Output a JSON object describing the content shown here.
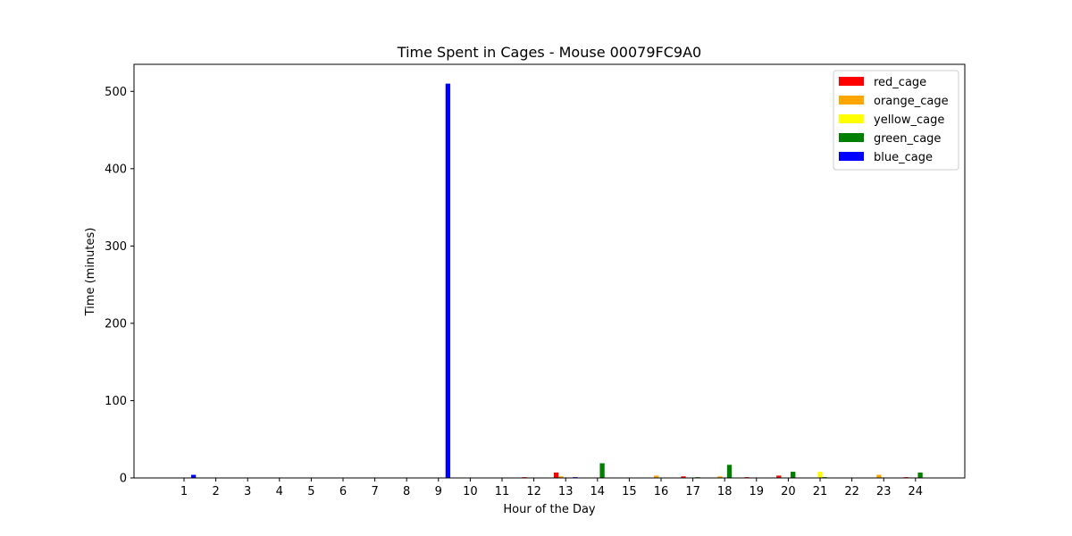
{
  "chart_data": {
    "type": "bar",
    "title": "Time Spent in Cages - Mouse 00079FC9A0",
    "xlabel": "Hour of the Day",
    "ylabel": "Time (minutes)",
    "categories": [
      "1",
      "2",
      "3",
      "4",
      "5",
      "6",
      "7",
      "8",
      "9",
      "10",
      "11",
      "12",
      "13",
      "14",
      "15",
      "16",
      "17",
      "18",
      "19",
      "20",
      "21",
      "22",
      "23",
      "24"
    ],
    "ylim": [
      0,
      535
    ],
    "yticks": [
      0,
      100,
      200,
      300,
      400,
      500
    ],
    "legend_position": "top-right",
    "grid": false,
    "series": [
      {
        "name": "red_cage",
        "color": "#ff0000",
        "values": [
          0,
          0,
          0,
          0,
          0,
          0,
          0,
          0,
          0,
          0,
          0,
          1,
          7,
          0,
          0,
          0,
          2,
          0,
          1,
          3,
          0,
          0,
          0,
          1
        ]
      },
      {
        "name": "orange_cage",
        "color": "#ffa500",
        "values": [
          0,
          0,
          0,
          0,
          0,
          0,
          0,
          0,
          0,
          0,
          0,
          0,
          2,
          0,
          0,
          3,
          0,
          2,
          0,
          0,
          0,
          0,
          4,
          0
        ]
      },
      {
        "name": "yellow_cage",
        "color": "#ffff00",
        "values": [
          0,
          0,
          0,
          0,
          0,
          0,
          0,
          0,
          0,
          0,
          0,
          0,
          0,
          0,
          0,
          0,
          0,
          0,
          0,
          0,
          8,
          0,
          0,
          0
        ]
      },
      {
        "name": "green_cage",
        "color": "#008000",
        "values": [
          0,
          0,
          0,
          0,
          0,
          0,
          0,
          0,
          0,
          0,
          0,
          0,
          0,
          19,
          0,
          0,
          1,
          17,
          0,
          8,
          1,
          0,
          0,
          7
        ]
      },
      {
        "name": "blue_cage",
        "color": "#0000ff",
        "values": [
          4,
          0,
          0,
          0,
          0,
          0,
          0,
          0,
          510,
          0,
          0,
          0,
          1,
          0,
          0,
          0,
          0,
          0,
          0,
          0,
          0,
          0,
          0,
          0
        ]
      }
    ]
  }
}
